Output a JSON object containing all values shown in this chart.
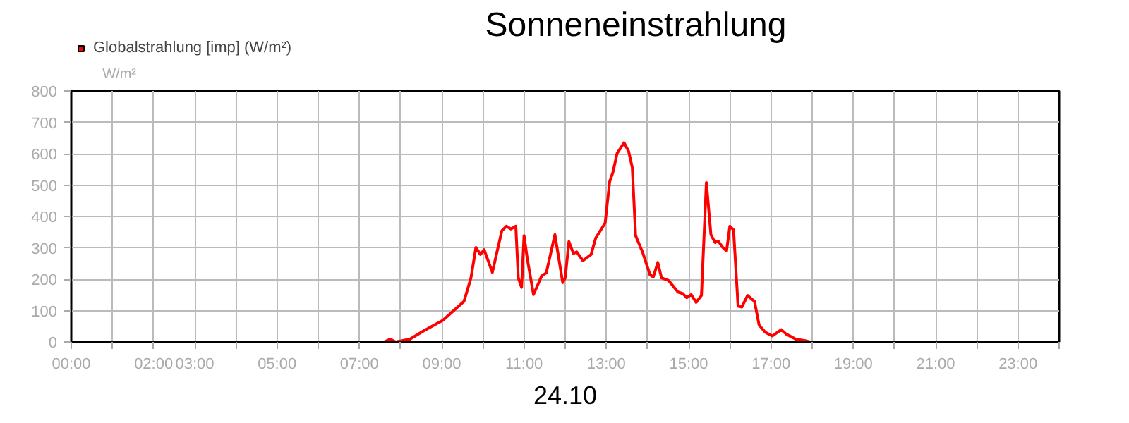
{
  "chart_data": {
    "type": "line",
    "title": "Sonneneinstrahlung",
    "xlabel": "24.10",
    "ylabel": "W/m²",
    "xlim": [
      0,
      24
    ],
    "ylim": [
      0,
      800
    ],
    "xticks": [
      {
        "value": 0,
        "label": "00:00"
      },
      {
        "value": 1,
        "label": null
      },
      {
        "value": 2,
        "label": "02:00"
      },
      {
        "value": 3,
        "label": "03:00"
      },
      {
        "value": 4,
        "label": null
      },
      {
        "value": 5,
        "label": "05:00"
      },
      {
        "value": 6,
        "label": null
      },
      {
        "value": 7,
        "label": "07:00"
      },
      {
        "value": 8,
        "label": null
      },
      {
        "value": 9,
        "label": "09:00"
      },
      {
        "value": 10,
        "label": null
      },
      {
        "value": 11,
        "label": "11:00"
      },
      {
        "value": 12,
        "label": null
      },
      {
        "value": 13,
        "label": "13:00"
      },
      {
        "value": 14,
        "label": null
      },
      {
        "value": 15,
        "label": "15:00"
      },
      {
        "value": 16,
        "label": null
      },
      {
        "value": 17,
        "label": "17:00"
      },
      {
        "value": 18,
        "label": null
      },
      {
        "value": 19,
        "label": "19:00"
      },
      {
        "value": 20,
        "label": null
      },
      {
        "value": 21,
        "label": "21:00"
      },
      {
        "value": 22,
        "label": null
      },
      {
        "value": 23,
        "label": "23:00"
      },
      {
        "value": 24,
        "label": null
      }
    ],
    "yticks": [
      0,
      100,
      200,
      300,
      400,
      500,
      600,
      700,
      800
    ],
    "grid": true,
    "legend": "top left",
    "marker": "none",
    "line_style": "solid",
    "series": [
      {
        "name": "Globalstrahlung [imp] (W/m²)",
        "color": "#ff0000",
        "x": [
          0,
          7.6,
          7.75,
          7.88,
          8.23,
          8.57,
          9.03,
          9.54,
          9.71,
          9.83,
          9.94,
          10.03,
          10.23,
          10.46,
          10.57,
          10.68,
          10.8,
          10.86,
          10.94,
          11.0,
          11.08,
          11.23,
          11.43,
          11.54,
          11.75,
          11.94,
          12.0,
          12.09,
          12.2,
          12.28,
          12.43,
          12.63,
          12.74,
          12.97,
          13.08,
          13.16,
          13.26,
          13.43,
          13.54,
          13.63,
          13.71,
          13.88,
          14.06,
          14.14,
          14.25,
          14.34,
          14.51,
          14.74,
          14.86,
          14.95,
          15.06,
          15.18,
          15.31,
          15.43,
          15.54,
          15.64,
          15.72,
          15.83,
          15.92,
          16.0,
          16.09,
          16.2,
          16.29,
          16.43,
          16.6,
          16.71,
          16.86,
          17.03,
          17.25,
          17.37,
          17.6,
          17.83,
          17.94,
          23.95
        ],
        "values": [
          0,
          0,
          9,
          0,
          9,
          36,
          69,
          129,
          204,
          301,
          279,
          294,
          222,
          354,
          369,
          360,
          369,
          204,
          174,
          339,
          264,
          151,
          211,
          220,
          342,
          189,
          204,
          320,
          282,
          287,
          259,
          279,
          331,
          379,
          511,
          541,
          601,
          635,
          608,
          556,
          339,
          286,
          214,
          207,
          253,
          204,
          196,
          159,
          154,
          141,
          151,
          126,
          148,
          508,
          342,
          317,
          321,
          301,
          290,
          369,
          357,
          114,
          111,
          148,
          129,
          54,
          31,
          19,
          39,
          25,
          9,
          4,
          0,
          0
        ]
      }
    ]
  }
}
